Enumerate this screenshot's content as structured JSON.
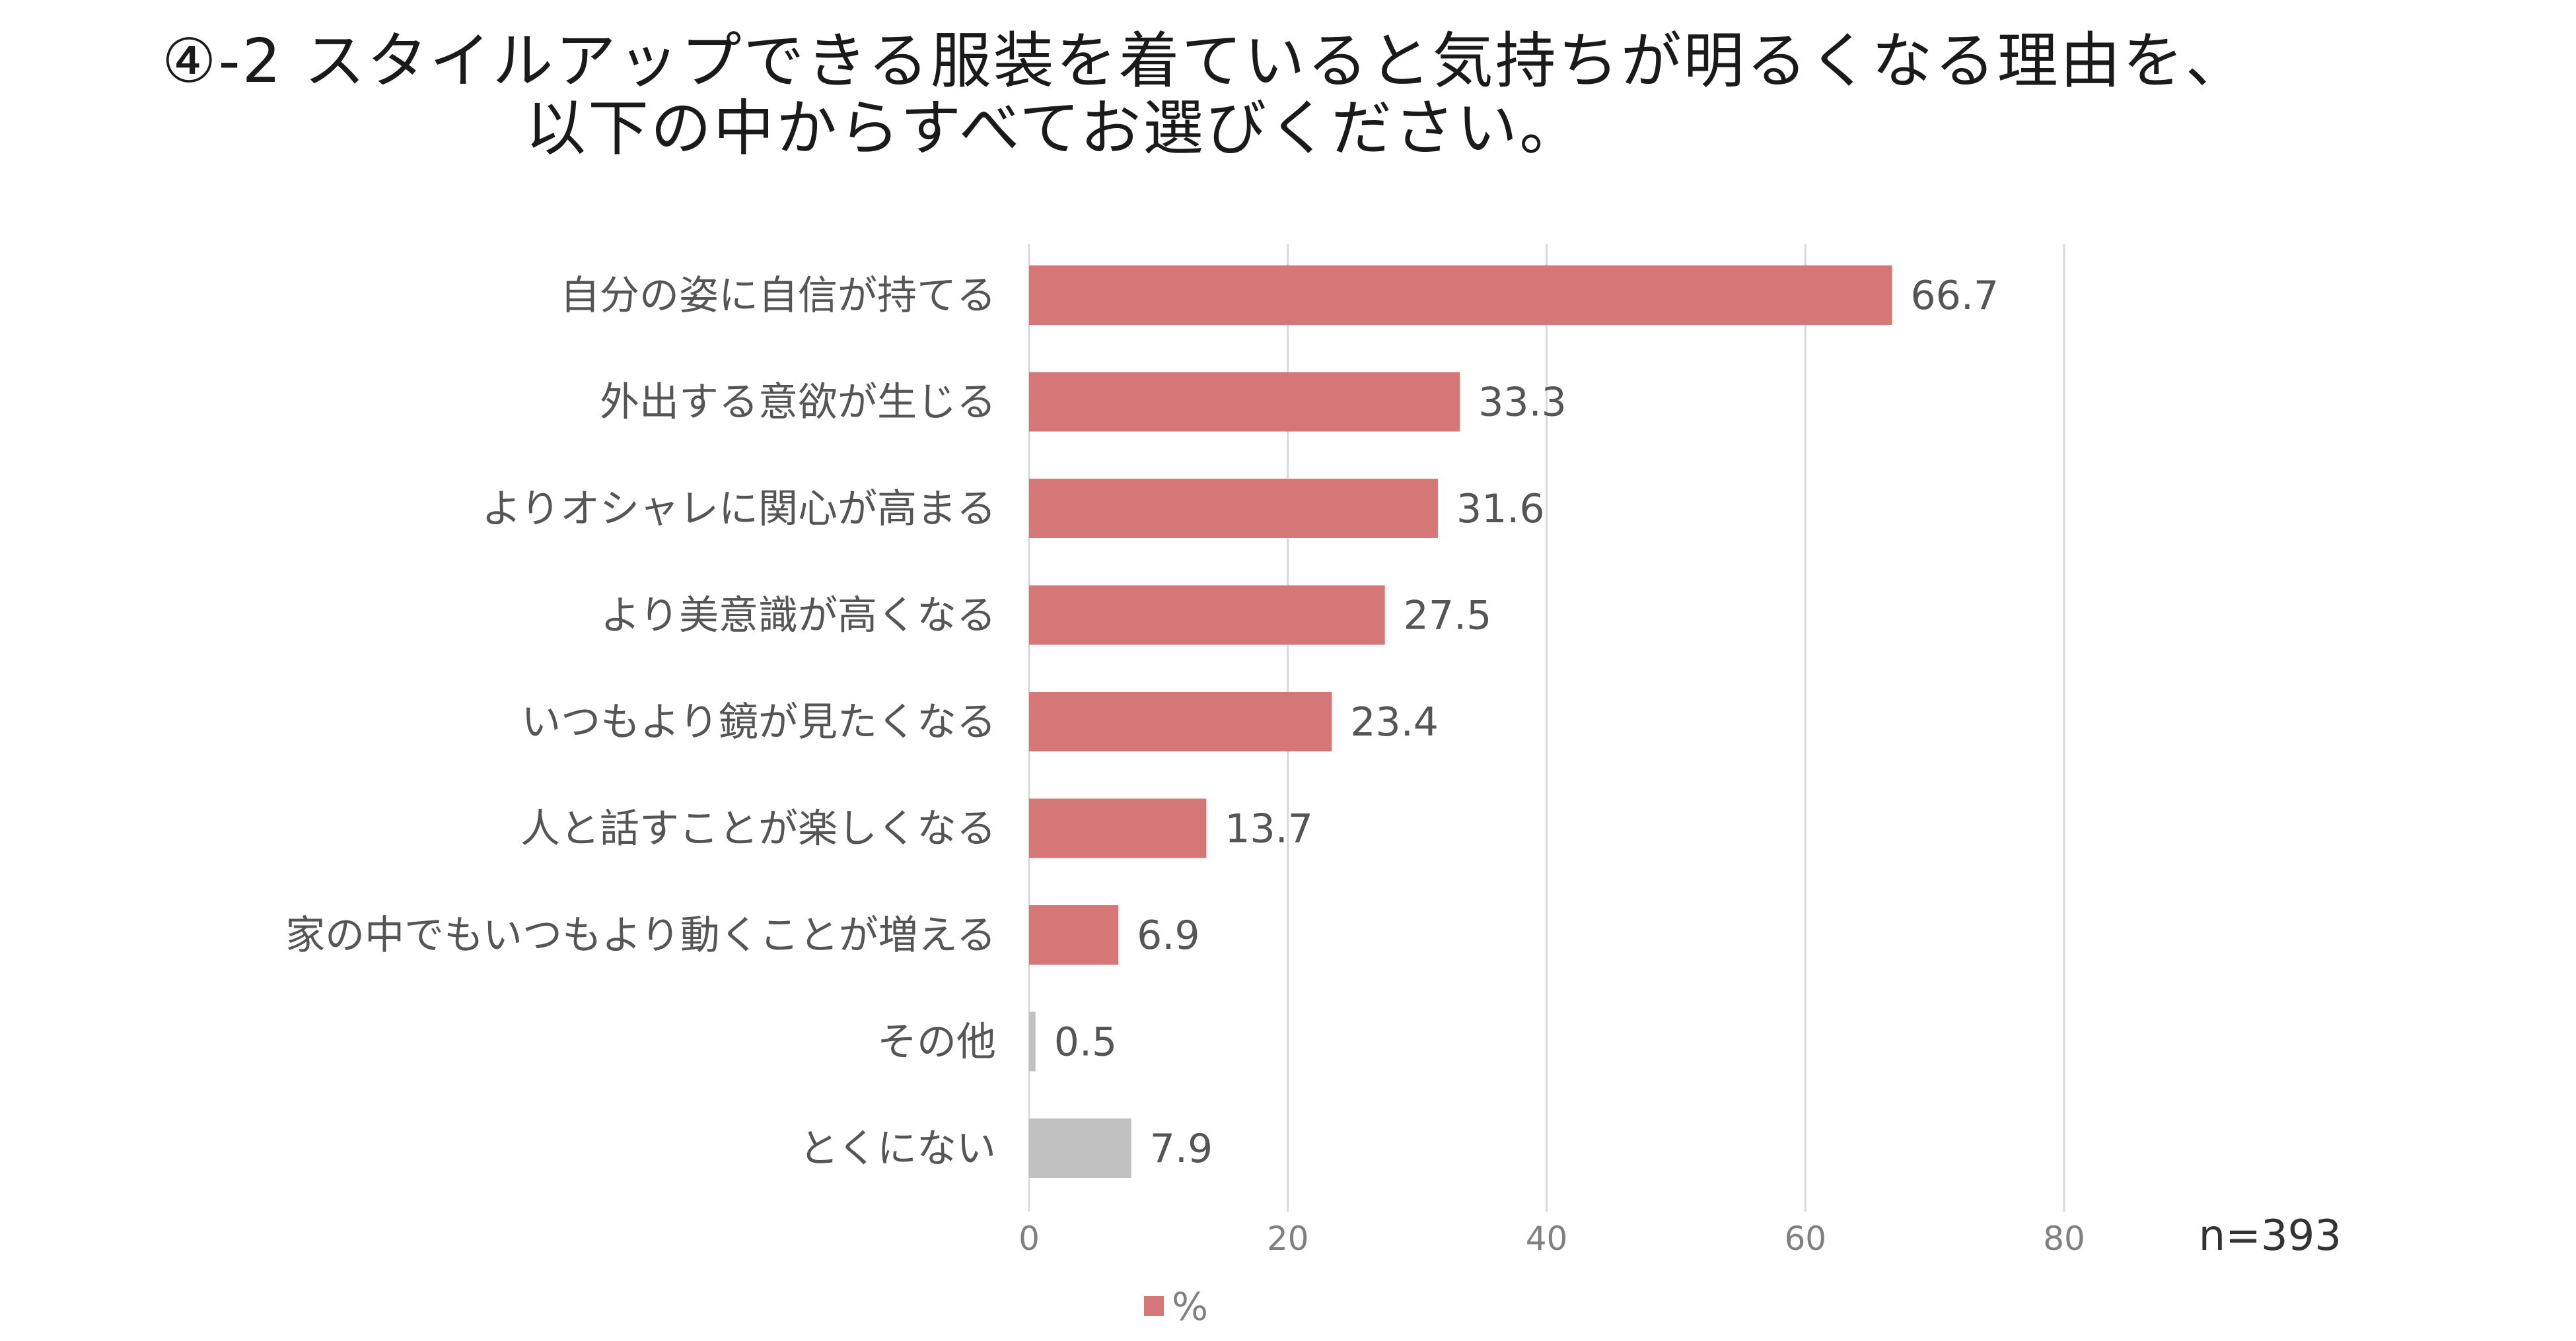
{
  "title": {
    "line1": "④-2 スタイルアップできる服装を着ていると気持ちが明るくなる理由を、",
    "line2": "以下の中からすべてお選びください。"
  },
  "sample_size": "n=393",
  "colors": {
    "primary_bar": "#d47776",
    "other_bar": "#c0c0c0",
    "grid": "#d9d9d9"
  },
  "chart_data": {
    "type": "bar",
    "orientation": "horizontal",
    "categories": [
      "自分の姿に自信が持てる",
      "外出する意欲が生じる",
      "よりオシャレに関心が高まる",
      "より美意識が高くなる",
      "いつもより鏡が見たくなる",
      "人と話すことが楽しくなる",
      "家の中でもいつもより動くことが増える",
      "その他",
      "とくにない"
    ],
    "series": [
      {
        "name": "%",
        "values": [
          66.7,
          33.3,
          31.6,
          27.5,
          23.4,
          13.7,
          6.9,
          0.5,
          7.9
        ],
        "value_labels": [
          "66.7",
          "33.3",
          "31.6",
          "27.5",
          "23.4",
          "13.7",
          "6.9",
          "0.5",
          "7.9"
        ]
      }
    ],
    "bar_kind": [
      "primary",
      "primary",
      "primary",
      "primary",
      "primary",
      "primary",
      "primary",
      "other",
      "other"
    ],
    "xlim": [
      0,
      80
    ],
    "xticks": [
      0,
      20,
      40,
      60,
      80
    ],
    "xtick_labels": [
      "0",
      "20",
      "40",
      "60",
      "80"
    ],
    "grid": true,
    "legend": {
      "position": "bottom",
      "entries": [
        "%"
      ]
    }
  }
}
